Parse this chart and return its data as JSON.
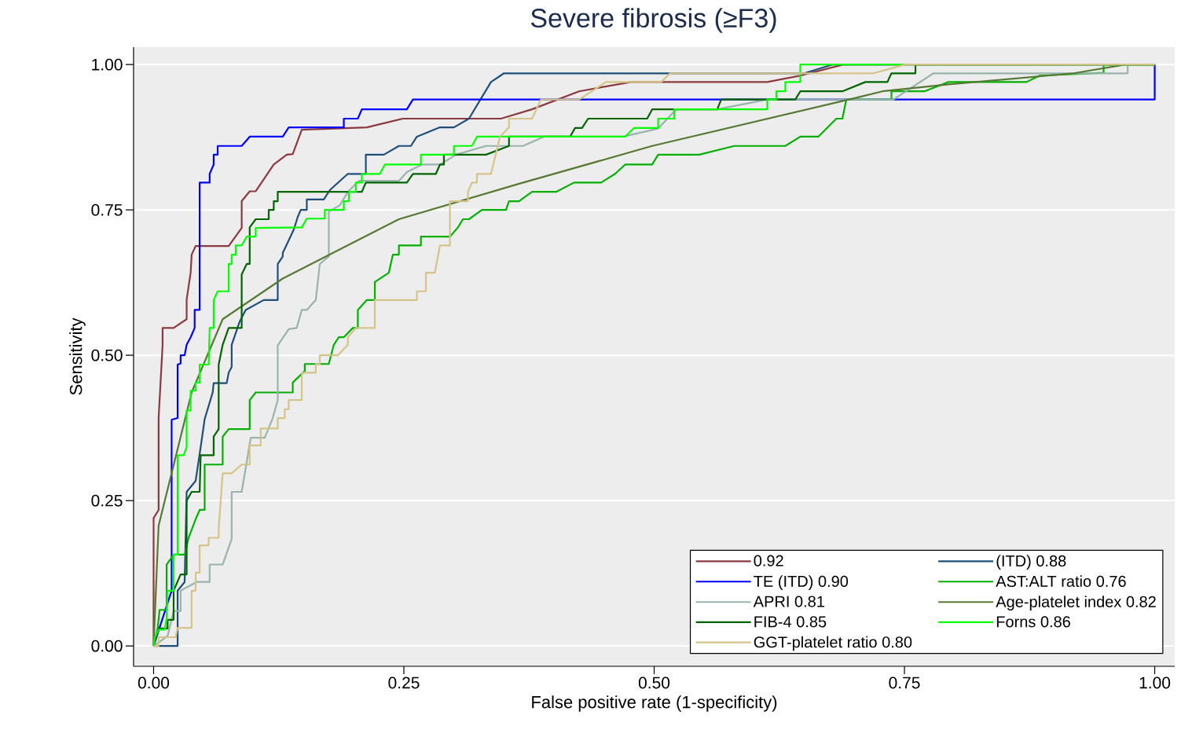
{
  "chart_data": {
    "type": "line",
    "title": "Severe fibrosis (≥F3)",
    "xlabel": "False positive rate (1-specificity)",
    "ylabel": "Sensitivity",
    "xlim": [
      -0.02,
      1.02
    ],
    "ylim": [
      -0.035,
      1.03
    ],
    "xticks": [
      {
        "value": 0,
        "label": "0.00"
      },
      {
        "value": 0.25,
        "label": "0.25"
      },
      {
        "value": 0.5,
        "label": "0.50"
      },
      {
        "value": 0.75,
        "label": "0.75"
      },
      {
        "value": 1,
        "label": "1.00"
      }
    ],
    "yticks": [
      {
        "value": 0,
        "label": "0.00"
      },
      {
        "value": 0.25,
        "label": "0.25"
      },
      {
        "value": 0.5,
        "label": "0.50"
      },
      {
        "value": 0.75,
        "label": "0.75"
      },
      {
        "value": 1,
        "label": "1.00"
      }
    ],
    "grid": "y",
    "legend": "bottom right",
    "series": [
      {
        "name": "0.92",
        "color": "#8b3a3f",
        "x": [
          0,
          0,
          0.005,
          0.005,
          0.009,
          0.009,
          0.02,
          0.033,
          0.033,
          0.037,
          0.038,
          0.042,
          0.075,
          0.088,
          0.088,
          0.096,
          0.102,
          0.12,
          0.133,
          0.139,
          0.148,
          0.213,
          0.249,
          0.347,
          0.378,
          0.425,
          0.477,
          0.613,
          0.646,
          0.689,
          1
        ],
        "values": [
          0,
          0.22,
          0.234,
          0.392,
          0.518,
          0.547,
          0.547,
          0.562,
          0.596,
          0.642,
          0.673,
          0.688,
          0.688,
          0.719,
          0.765,
          0.782,
          0.782,
          0.828,
          0.845,
          0.846,
          0.888,
          0.892,
          0.907,
          0.907,
          0.923,
          0.954,
          0.97,
          0.97,
          0.981,
          1,
          1
        ]
      },
      {
        "name": "(ITD) 0.88",
        "color": "#1f4e79",
        "x": [
          0,
          0.024,
          0.024,
          0.031,
          0.033,
          0.042,
          0.047,
          0.051,
          0.059,
          0.06,
          0.073,
          0.075,
          0.078,
          0.078,
          0.086,
          0.092,
          0.11,
          0.124,
          0.124,
          0.129,
          0.129,
          0.14,
          0.144,
          0.147,
          0.153,
          0.153,
          0.17,
          0.176,
          0.194,
          0.212,
          0.212,
          0.23,
          0.245,
          0.257,
          0.263,
          0.286,
          0.3,
          0.315,
          0.337,
          0.35,
          0.65,
          0.678,
          1
        ],
        "values": [
          0,
          0,
          0.095,
          0.11,
          0.265,
          0.284,
          0.342,
          0.39,
          0.436,
          0.452,
          0.452,
          0.47,
          0.48,
          0.518,
          0.558,
          0.578,
          0.595,
          0.595,
          0.657,
          0.67,
          0.676,
          0.716,
          0.738,
          0.75,
          0.75,
          0.768,
          0.768,
          0.784,
          0.812,
          0.812,
          0.845,
          0.845,
          0.86,
          0.86,
          0.876,
          0.892,
          0.892,
          0.907,
          0.97,
          0.985,
          0.985,
          1,
          1
        ]
      },
      {
        "name": "TE (ITD) 0.90",
        "color": "#0000ff",
        "x": [
          0,
          0.018,
          0.018,
          0.024,
          0.024,
          0.027,
          0.027,
          0.031,
          0.033,
          0.037,
          0.041,
          0.041,
          0.046,
          0.046,
          0.056,
          0.056,
          0.06,
          0.06,
          0.064,
          0.064,
          0.088,
          0.096,
          0.129,
          0.135,
          0.19,
          0.19,
          0.204,
          0.208,
          0.253,
          0.259,
          1,
          1
        ],
        "values": [
          0,
          0.095,
          0.389,
          0.392,
          0.484,
          0.486,
          0.5,
          0.5,
          0.518,
          0.531,
          0.547,
          0.578,
          0.578,
          0.797,
          0.797,
          0.812,
          0.828,
          0.845,
          0.845,
          0.86,
          0.86,
          0.876,
          0.876,
          0.892,
          0.892,
          0.907,
          0.907,
          0.923,
          0.923,
          0.94,
          0.94,
          1
        ]
      },
      {
        "name": "AST:ALT ratio 0.76",
        "color": "#00b000",
        "x": [
          0,
          0.004,
          0.006,
          0.013,
          0.013,
          0.02,
          0.031,
          0.035,
          0.042,
          0.046,
          0.051,
          0.051,
          0.069,
          0.069,
          0.075,
          0.096,
          0.096,
          0.102,
          0.139,
          0.139,
          0.151,
          0.151,
          0.175,
          0.18,
          0.185,
          0.19,
          0.199,
          0.204,
          0.204,
          0.213,
          0.221,
          0.221,
          0.235,
          0.239,
          0.245,
          0.245,
          0.267,
          0.267,
          0.296,
          0.304,
          0.309,
          0.315,
          0.328,
          0.352,
          0.355,
          0.365,
          0.378,
          0.402,
          0.42,
          0.447,
          0.461,
          0.471,
          0.498,
          0.504,
          0.545,
          0.58,
          0.631,
          0.646,
          0.664,
          0.682,
          0.688,
          0.692,
          0.737,
          0.737,
          0.77,
          0.794,
          0.872,
          0.885,
          0.949,
          0.949,
          1
        ],
        "values": [
          0,
          0.03,
          0.062,
          0.062,
          0.14,
          0.157,
          0.157,
          0.186,
          0.218,
          0.234,
          0.234,
          0.312,
          0.312,
          0.36,
          0.373,
          0.373,
          0.423,
          0.436,
          0.436,
          0.453,
          0.473,
          0.485,
          0.485,
          0.518,
          0.531,
          0.531,
          0.547,
          0.547,
          0.578,
          0.595,
          0.595,
          0.626,
          0.642,
          0.673,
          0.673,
          0.689,
          0.689,
          0.704,
          0.704,
          0.72,
          0.734,
          0.734,
          0.75,
          0.75,
          0.765,
          0.765,
          0.781,
          0.781,
          0.797,
          0.797,
          0.812,
          0.828,
          0.828,
          0.845,
          0.845,
          0.86,
          0.86,
          0.876,
          0.876,
          0.907,
          0.907,
          0.94,
          0.94,
          0.954,
          0.954,
          0.97,
          0.97,
          0.981,
          0.986,
          1,
          1
        ]
      },
      {
        "name": "APRI 0.81",
        "color": "#98b4ac",
        "x": [
          0,
          0.014,
          0.02,
          0.027,
          0.027,
          0.043,
          0.056,
          0.056,
          0.069,
          0.078,
          0.078,
          0.088,
          0.097,
          0.111,
          0.119,
          0.124,
          0.124,
          0.135,
          0.143,
          0.148,
          0.153,
          0.162,
          0.166,
          0.175,
          0.175,
          0.186,
          0.194,
          0.205,
          0.245,
          0.253,
          0.268,
          0.286,
          0.302,
          0.332,
          0.369,
          0.39,
          0.469,
          0.504,
          0.522,
          0.563,
          0.613,
          0.739,
          0.779,
          0.973,
          0.973,
          1
        ],
        "values": [
          0,
          0.017,
          0.06,
          0.06,
          0.095,
          0.11,
          0.11,
          0.14,
          0.14,
          0.184,
          0.265,
          0.265,
          0.358,
          0.358,
          0.392,
          0.423,
          0.517,
          0.545,
          0.547,
          0.578,
          0.578,
          0.595,
          0.657,
          0.67,
          0.747,
          0.758,
          0.781,
          0.8,
          0.8,
          0.815,
          0.828,
          0.828,
          0.845,
          0.86,
          0.86,
          0.876,
          0.876,
          0.89,
          0.923,
          0.923,
          0.94,
          0.94,
          0.985,
          0.985,
          1,
          1
        ]
      },
      {
        "name": "Age-platelet index 0.82",
        "color": "#567a34",
        "x": [
          0,
          0.005,
          0.038,
          0.069,
          0.129,
          0.245,
          0.365,
          0.498,
          0.702,
          0.728,
          0.794,
          0.919,
          0.971,
          1
        ],
        "values": [
          0,
          0.207,
          0.436,
          0.562,
          0.632,
          0.734,
          0.795,
          0.86,
          0.943,
          0.954,
          0.966,
          0.985,
          1,
          1
        ]
      },
      {
        "name": "FIB-4 0.85",
        "color": "#006400",
        "x": [
          0,
          0.005,
          0.014,
          0.014,
          0.02,
          0.02,
          0.027,
          0.033,
          0.033,
          0.038,
          0.046,
          0.047,
          0.06,
          0.06,
          0.065,
          0.065,
          0.069,
          0.075,
          0.088,
          0.088,
          0.093,
          0.096,
          0.096,
          0.102,
          0.115,
          0.115,
          0.12,
          0.12,
          0.124,
          0.124,
          0.208,
          0.212,
          0.253,
          0.259,
          0.282,
          0.286,
          0.29,
          0.29,
          0.332,
          0.355,
          0.355,
          0.416,
          0.421,
          0.428,
          0.434,
          0.493,
          0.498,
          0.563,
          0.567,
          0.641,
          0.646,
          0.688,
          0.711,
          0.733,
          0.737,
          0.761,
          0.761,
          1
        ],
        "values": [
          0,
          0.03,
          0.03,
          0.045,
          0.045,
          0.095,
          0.123,
          0.123,
          0.25,
          0.265,
          0.265,
          0.328,
          0.328,
          0.36,
          0.373,
          0.484,
          0.518,
          0.547,
          0.547,
          0.639,
          0.657,
          0.657,
          0.72,
          0.734,
          0.734,
          0.75,
          0.75,
          0.765,
          0.765,
          0.781,
          0.781,
          0.797,
          0.797,
          0.812,
          0.812,
          0.828,
          0.828,
          0.845,
          0.845,
          0.86,
          0.876,
          0.876,
          0.891,
          0.891,
          0.907,
          0.907,
          0.923,
          0.923,
          0.94,
          0.94,
          0.954,
          0.954,
          0.97,
          0.97,
          0.985,
          0.985,
          1,
          1
        ]
      },
      {
        "name": "Forns 0.86",
        "color": "#00ff00",
        "x": [
          0,
          0.001,
          0.005,
          0.011,
          0.013,
          0.014,
          0.02,
          0.02,
          0.024,
          0.024,
          0.03,
          0.033,
          0.033,
          0.037,
          0.037,
          0.042,
          0.042,
          0.046,
          0.046,
          0.055,
          0.056,
          0.06,
          0.06,
          0.064,
          0.075,
          0.075,
          0.078,
          0.078,
          0.082,
          0.082,
          0.088,
          0.093,
          0.102,
          0.102,
          0.148,
          0.153,
          0.171,
          0.171,
          0.19,
          0.19,
          0.195,
          0.195,
          0.202,
          0.202,
          0.208,
          0.208,
          0.226,
          0.231,
          0.267,
          0.267,
          0.3,
          0.3,
          0.318,
          0.323,
          0.471,
          0.48,
          0.504,
          0.504,
          0.52,
          0.52,
          0.613,
          0.613,
          0.622,
          0.622,
          0.631,
          0.631,
          0.646,
          0.646,
          1
        ],
        "values": [
          0,
          0.014,
          0.028,
          0.028,
          0.047,
          0.095,
          0.095,
          0.157,
          0.157,
          0.328,
          0.328,
          0.342,
          0.405,
          0.405,
          0.439,
          0.439,
          0.453,
          0.453,
          0.484,
          0.484,
          0.547,
          0.547,
          0.595,
          0.61,
          0.61,
          0.657,
          0.657,
          0.673,
          0.673,
          0.689,
          0.689,
          0.704,
          0.704,
          0.719,
          0.72,
          0.735,
          0.735,
          0.75,
          0.75,
          0.765,
          0.765,
          0.781,
          0.781,
          0.797,
          0.797,
          0.812,
          0.812,
          0.828,
          0.828,
          0.845,
          0.845,
          0.86,
          0.86,
          0.876,
          0.876,
          0.891,
          0.891,
          0.907,
          0.907,
          0.923,
          0.923,
          0.94,
          0.94,
          0.954,
          0.954,
          0.97,
          0.97,
          1,
          1
        ]
      },
      {
        "name": "GGT-platelet ratio 0.80",
        "color": "#d4c48a",
        "x": [
          0,
          0.005,
          0.005,
          0.022,
          0.024,
          0.038,
          0.038,
          0.042,
          0.042,
          0.046,
          0.046,
          0.055,
          0.055,
          0.065,
          0.065,
          0.069,
          0.078,
          0.088,
          0.096,
          0.096,
          0.107,
          0.107,
          0.124,
          0.124,
          0.131,
          0.131,
          0.135,
          0.135,
          0.148,
          0.148,
          0.162,
          0.162,
          0.166,
          0.166,
          0.184,
          0.194,
          0.194,
          0.202,
          0.221,
          0.221,
          0.263,
          0.263,
          0.272,
          0.272,
          0.281,
          0.286,
          0.296,
          0.296,
          0.314,
          0.314,
          0.318,
          0.323,
          0.323,
          0.337,
          0.346,
          0.355,
          0.355,
          0.378,
          0.387,
          0.425,
          0.452,
          0.507,
          0.516,
          0.719,
          0.751,
          1
        ],
        "values": [
          0,
          0,
          0.015,
          0.015,
          0.031,
          0.031,
          0.095,
          0.095,
          0.126,
          0.126,
          0.173,
          0.173,
          0.186,
          0.186,
          0.202,
          0.297,
          0.297,
          0.312,
          0.312,
          0.345,
          0.345,
          0.374,
          0.374,
          0.392,
          0.392,
          0.407,
          0.407,
          0.423,
          0.423,
          0.47,
          0.47,
          0.485,
          0.485,
          0.5,
          0.5,
          0.518,
          0.531,
          0.547,
          0.547,
          0.595,
          0.595,
          0.61,
          0.61,
          0.642,
          0.642,
          0.689,
          0.689,
          0.765,
          0.765,
          0.781,
          0.797,
          0.797,
          0.812,
          0.812,
          0.876,
          0.892,
          0.907,
          0.907,
          0.94,
          0.94,
          0.97,
          0.97,
          0.985,
          0.985,
          1,
          1
        ]
      }
    ]
  }
}
